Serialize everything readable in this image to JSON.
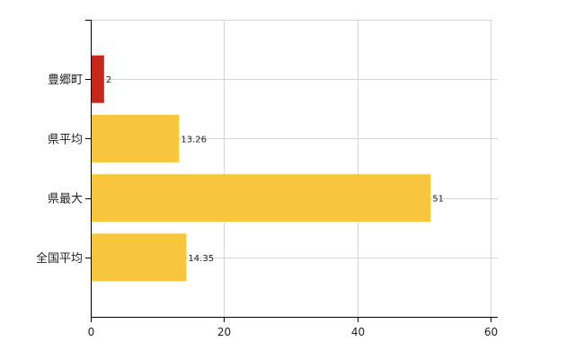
{
  "chart_data": {
    "type": "bar",
    "orientation": "horizontal",
    "categories": [
      "豊郷町",
      "県平均",
      "県最大",
      "全国平均"
    ],
    "values": [
      2,
      13.26,
      51,
      14.35
    ],
    "value_labels": [
      "2",
      "13.26",
      "51",
      "14.35"
    ],
    "colors": [
      "#c8271b",
      "#f7c63c",
      "#f7c63c",
      "#f7c63c"
    ],
    "title": "",
    "xlabel": "",
    "ylabel": "",
    "xlim": [
      0,
      60
    ],
    "xticks": [
      0,
      20,
      40,
      60
    ],
    "xtick_labels": [
      "0",
      "20",
      "40",
      "60"
    ],
    "grid": true,
    "legend": "none"
  }
}
